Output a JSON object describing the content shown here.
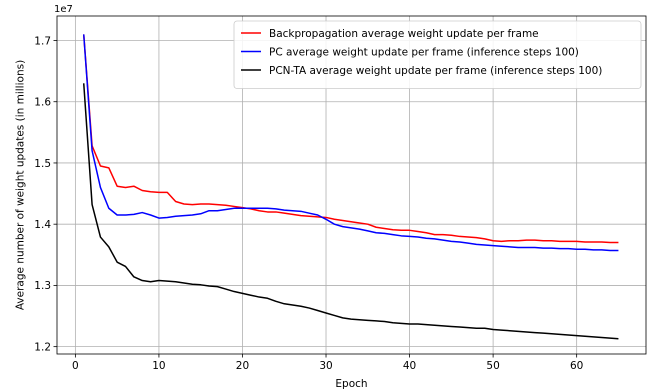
{
  "chart_data": {
    "type": "line",
    "xlabel": "Epoch",
    "ylabel": "Average number of weight updates (in millions)",
    "y_offset_label": "1e7",
    "xlim": [
      -2.2,
      68.3
    ],
    "ylim": [
      11880000,
      17400000
    ],
    "xticks": [
      0,
      10,
      20,
      30,
      40,
      50,
      60
    ],
    "yticks": [
      12000000,
      13000000,
      14000000,
      15000000,
      16000000,
      17000000
    ],
    "ytick_labels": [
      "1.2",
      "1.3",
      "1.4",
      "1.5",
      "1.6",
      "1.7"
    ],
    "grid": true,
    "legend_position": "top-right",
    "series": [
      {
        "name": "Backpropagation average weight update per frame",
        "color": "#ff0000",
        "x": [
          1,
          2,
          3,
          4,
          5,
          6,
          7,
          8,
          9,
          10,
          11,
          12,
          13,
          14,
          15,
          16,
          17,
          18,
          19,
          20,
          21,
          22,
          23,
          24,
          25,
          26,
          27,
          28,
          29,
          30,
          31,
          32,
          33,
          34,
          35,
          36,
          37,
          38,
          39,
          40,
          41,
          42,
          43,
          44,
          45,
          46,
          47,
          48,
          49,
          50,
          51,
          52,
          53,
          54,
          55,
          56,
          57,
          58,
          59,
          60,
          61,
          62,
          63,
          64,
          65
        ],
        "y": [
          17100000,
          15280000,
          14950000,
          14920000,
          14620000,
          14600000,
          14620000,
          14550000,
          14530000,
          14520000,
          14520000,
          14370000,
          14330000,
          14320000,
          14330000,
          14330000,
          14320000,
          14310000,
          14290000,
          14270000,
          14250000,
          14220000,
          14200000,
          14200000,
          14180000,
          14160000,
          14140000,
          14130000,
          14120000,
          14110000,
          14080000,
          14060000,
          14040000,
          14020000,
          14000000,
          13950000,
          13930000,
          13910000,
          13900000,
          13900000,
          13880000,
          13860000,
          13830000,
          13830000,
          13820000,
          13800000,
          13790000,
          13780000,
          13760000,
          13730000,
          13720000,
          13730000,
          13730000,
          13740000,
          13740000,
          13730000,
          13730000,
          13720000,
          13720000,
          13720000,
          13710000,
          13710000,
          13710000,
          13700000,
          13700000
        ]
      },
      {
        "name": "PC average weight update per frame (inference steps 100)",
        "color": "#0000ff",
        "x": [
          1,
          2,
          3,
          4,
          5,
          6,
          7,
          8,
          9,
          10,
          11,
          12,
          13,
          14,
          15,
          16,
          17,
          18,
          19,
          20,
          21,
          22,
          23,
          24,
          25,
          26,
          27,
          28,
          29,
          30,
          31,
          32,
          33,
          34,
          35,
          36,
          37,
          38,
          39,
          40,
          41,
          42,
          43,
          44,
          45,
          46,
          47,
          48,
          49,
          50,
          51,
          52,
          53,
          54,
          55,
          56,
          57,
          58,
          59,
          60,
          61,
          62,
          63,
          64,
          65
        ],
        "y": [
          17100000,
          15200000,
          14600000,
          14260000,
          14150000,
          14150000,
          14160000,
          14190000,
          14150000,
          14100000,
          14110000,
          14130000,
          14140000,
          14150000,
          14170000,
          14220000,
          14220000,
          14240000,
          14260000,
          14260000,
          14260000,
          14260000,
          14260000,
          14250000,
          14230000,
          14220000,
          14210000,
          14180000,
          14150000,
          14080000,
          14000000,
          13960000,
          13940000,
          13920000,
          13890000,
          13860000,
          13850000,
          13830000,
          13810000,
          13800000,
          13790000,
          13770000,
          13760000,
          13740000,
          13720000,
          13710000,
          13690000,
          13670000,
          13660000,
          13650000,
          13640000,
          13630000,
          13620000,
          13620000,
          13620000,
          13610000,
          13610000,
          13600000,
          13600000,
          13590000,
          13590000,
          13580000,
          13580000,
          13570000,
          13570000
        ]
      },
      {
        "name": "PCN-TA average weight update per frame (inference steps 100)",
        "color": "#000000",
        "x": [
          1,
          2,
          3,
          4,
          5,
          6,
          7,
          8,
          9,
          10,
          11,
          12,
          13,
          14,
          15,
          16,
          17,
          18,
          19,
          20,
          21,
          22,
          23,
          24,
          25,
          26,
          27,
          28,
          29,
          30,
          31,
          32,
          33,
          34,
          35,
          36,
          37,
          38,
          39,
          40,
          41,
          42,
          43,
          44,
          45,
          46,
          47,
          48,
          49,
          50,
          51,
          52,
          53,
          54,
          55,
          56,
          57,
          58,
          59,
          60,
          61,
          62,
          63,
          64,
          65
        ],
        "y": [
          16300000,
          14320000,
          13790000,
          13630000,
          13380000,
          13310000,
          13140000,
          13080000,
          13060000,
          13080000,
          13070000,
          13060000,
          13040000,
          13020000,
          13010000,
          12990000,
          12980000,
          12940000,
          12900000,
          12870000,
          12840000,
          12810000,
          12790000,
          12740000,
          12700000,
          12680000,
          12660000,
          12630000,
          12590000,
          12550000,
          12510000,
          12470000,
          12450000,
          12440000,
          12430000,
          12420000,
          12410000,
          12390000,
          12380000,
          12370000,
          12370000,
          12360000,
          12350000,
          12340000,
          12330000,
          12320000,
          12310000,
          12300000,
          12300000,
          12280000,
          12270000,
          12260000,
          12250000,
          12240000,
          12230000,
          12220000,
          12210000,
          12200000,
          12190000,
          12180000,
          12170000,
          12160000,
          12150000,
          12140000,
          12130000
        ]
      }
    ]
  }
}
